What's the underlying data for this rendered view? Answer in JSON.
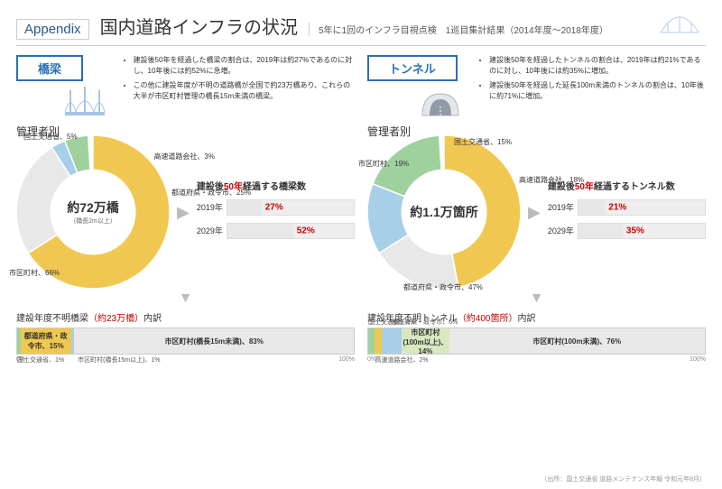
{
  "header": {
    "appendix": "Appendix",
    "title": "国内道路インフラの状況",
    "subtitle": "5年に1回のインフラ目視点検　1巡目集計結果（2014年度～2018年度）"
  },
  "bridges": {
    "tag": "橋梁",
    "tag_color": "#2a6fb5",
    "sub_heading": "管理者別",
    "notes": [
      "建設後50年を経過した橋梁の割合は、2019年は約27%であるのに対し、10年後には約52%に急増。",
      "この他に建設年度が不明の道路橋が全国で約23万橋あり、これらの大半が市区町村管理の橋長15m未満の橋梁。"
    ],
    "donut": {
      "center_big": "約72万橋",
      "center_small": "（橋長2m以上）",
      "slices": [
        {
          "label": "市区町村、66%",
          "value": 66,
          "color": "#f0c851"
        },
        {
          "label": "都道府県・政令市、25%",
          "value": 25,
          "color": "#e8e8e8"
        },
        {
          "label": "高速道路会社、3%",
          "value": 3,
          "color": "#a8cfe8"
        },
        {
          "label": "国土交通省、5%",
          "value": 5,
          "color": "#9fd19f"
        }
      ]
    },
    "bar_title": "建設後50年経過する橋梁数",
    "bars": [
      {
        "year": "2019年",
        "value": 27,
        "label": "27%",
        "color": "#e8e8e8"
      },
      {
        "year": "2029年",
        "value": 52,
        "label": "52%",
        "color": "#e8e8e8"
      }
    ],
    "breakdown_title_a": "建設年度不明橋梁",
    "breakdown_title_b": "（約23万橋）",
    "breakdown_title_c": "内訳",
    "stack": [
      {
        "label": "国土交通省、1%",
        "value": 1,
        "color": "#9fd19f",
        "ext": true,
        "ext_pos": "bottom-left"
      },
      {
        "label": "都道府県・政令市、15%",
        "value": 15,
        "color": "#f0c851"
      },
      {
        "label": "市区町村(橋長15m以上)、1%",
        "value": 1,
        "color": "#a8cfe8",
        "ext": true,
        "ext_pos": "bottom"
      },
      {
        "label": "市区町村(橋長15m未満)、83%",
        "value": 83,
        "color": "#e8e8e8"
      }
    ]
  },
  "tunnels": {
    "tag": "トンネル",
    "tag_color": "#2a6fb5",
    "sub_heading": "管理者別",
    "notes": [
      "建設後50年を経過したトンネルの割合は、2019年は約21%であるのに対し、10年後には約35%に増加。",
      "建設後50年を経過した延長100m未満のトンネルの割合は、10年後に約71%に増加。"
    ],
    "donut": {
      "center_big": "約1.1万箇所",
      "center_small": "",
      "slices": [
        {
          "label": "都道府県・政令市、47%",
          "value": 47,
          "color": "#f0c851"
        },
        {
          "label": "市区町村、19%",
          "value": 19,
          "color": "#e8e8e8"
        },
        {
          "label": "国土交通省、15%",
          "value": 15,
          "color": "#a8cfe8"
        },
        {
          "label": "高速道路会社、18%",
          "value": 18,
          "color": "#9fd19f"
        }
      ]
    },
    "bar_title": "建設後50年経過するトンネル数",
    "bars": [
      {
        "year": "2019年",
        "value": 21,
        "label": "21%",
        "color": "#e8e8e8"
      },
      {
        "year": "2029年",
        "value": 35,
        "label": "35%",
        "color": "#e8e8e8"
      }
    ],
    "breakdown_title_a": "建設年度不明トンネル",
    "breakdown_title_b": "（約400箇所）",
    "breakdown_title_c": "内訳",
    "stack": [
      {
        "label": "国土交通省、2%",
        "value": 2,
        "color": "#9fd19f",
        "ext": true,
        "ext_pos": "top-left"
      },
      {
        "label": "高速道路会社、2%",
        "value": 2,
        "color": "#f0c851",
        "ext": true,
        "ext_pos": "bottom-left"
      },
      {
        "label": "都道府県・政令市、6%",
        "value": 6,
        "color": "#a8cfe8",
        "ext": true,
        "ext_pos": "top"
      },
      {
        "label": "市区町村(100m以上)、14%",
        "value": 14,
        "color": "#d8e8c0"
      },
      {
        "label": "市区町村(100m未満)、76%",
        "value": 76,
        "color": "#e8e8e8"
      }
    ]
  },
  "source": "（出所：国土交通省 道路メンテナンス年報 令和元年8月）"
}
